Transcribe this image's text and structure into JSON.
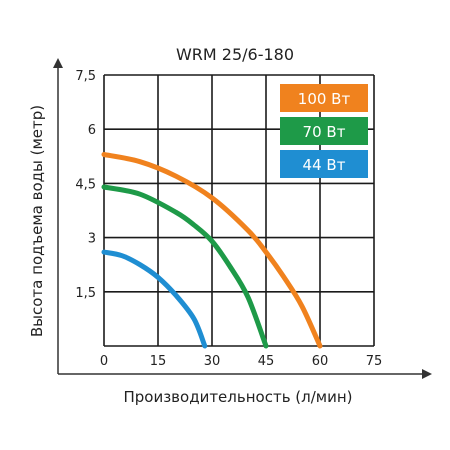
{
  "chart_data": {
    "type": "line",
    "title": "WRM 25/6-180",
    "xlabel": "Производительность (л/мин)",
    "ylabel": "Высота подъема воды (метр)",
    "xlim": [
      0,
      75
    ],
    "ylim": [
      0,
      7.5
    ],
    "x_ticks": [
      "0",
      "15",
      "30",
      "45",
      "60",
      "75"
    ],
    "y_ticks": [
      "1,5",
      "3",
      "4,5",
      "6",
      "7,5"
    ],
    "grid": true,
    "legend_position": "top-right",
    "series": [
      {
        "name": "100 Вт",
        "color": "#f0821e",
        "points": [
          [
            0,
            5.3
          ],
          [
            10,
            5.1
          ],
          [
            20,
            4.7
          ],
          [
            30,
            4.1
          ],
          [
            40,
            3.2
          ],
          [
            45,
            2.6
          ],
          [
            50,
            1.9
          ],
          [
            55,
            1.1
          ],
          [
            60,
            0
          ]
        ]
      },
      {
        "name": "70 Вт",
        "color": "#1e9a48",
        "points": [
          [
            0,
            4.4
          ],
          [
            10,
            4.2
          ],
          [
            20,
            3.7
          ],
          [
            25,
            3.35
          ],
          [
            30,
            2.9
          ],
          [
            35,
            2.2
          ],
          [
            40,
            1.35
          ],
          [
            45,
            0
          ]
        ]
      },
      {
        "name": "44 Вт",
        "color": "#1f8ed2",
        "points": [
          [
            0,
            2.6
          ],
          [
            5,
            2.5
          ],
          [
            10,
            2.25
          ],
          [
            15,
            1.9
          ],
          [
            20,
            1.4
          ],
          [
            25,
            0.75
          ],
          [
            28,
            0
          ]
        ]
      }
    ]
  }
}
